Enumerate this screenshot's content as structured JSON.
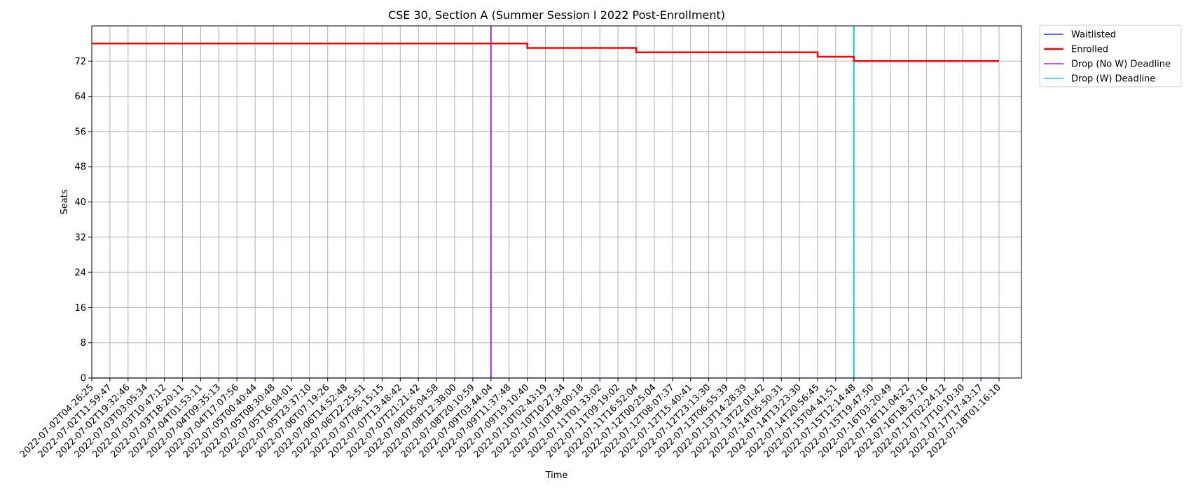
{
  "chart_data": {
    "type": "line",
    "title": "CSE 30, Section A (Summer Session I 2022 Post-Enrollment)",
    "xlabel": "Time",
    "ylabel": "Seats",
    "ylim": [
      0,
      80
    ],
    "yticks": [
      0,
      8,
      16,
      24,
      32,
      40,
      48,
      56,
      64,
      72
    ],
    "grid": true,
    "legend_position": "outside top-right",
    "x_categories": [
      "2022-07-02T04:26:25",
      "2022-07-02T11:59:47",
      "2022-07-02T19:32:46",
      "2022-07-03T03:05:34",
      "2022-07-03T10:47:12",
      "2022-07-03T18:20:11",
      "2022-07-04T01:53:11",
      "2022-07-04T09:35:13",
      "2022-07-04T17:07:56",
      "2022-07-05T00:40:44",
      "2022-07-05T08:30:48",
      "2022-07-05T16:04:01",
      "2022-07-05T23:37:10",
      "2022-07-06T07:19:26",
      "2022-07-06T14:52:48",
      "2022-07-06T22:25:51",
      "2022-07-07T06:15:15",
      "2022-07-07T13:48:42",
      "2022-07-07T21:21:42",
      "2022-07-08T05:04:58",
      "2022-07-08T12:38:00",
      "2022-07-08T20:10:59",
      "2022-07-09T03:44:04",
      "2022-07-09T11:37:48",
      "2022-07-09T19:10:40",
      "2022-07-10T02:43:19",
      "2022-07-10T10:27:34",
      "2022-07-10T18:00:18",
      "2022-07-11T01:33:02",
      "2022-07-11T09:19:02",
      "2022-07-11T16:52:04",
      "2022-07-12T00:25:04",
      "2022-07-12T08:07:37",
      "2022-07-12T15:40:41",
      "2022-07-12T23:13:30",
      "2022-07-13T06:55:39",
      "2022-07-13T14:28:39",
      "2022-07-13T22:01:42",
      "2022-07-14T05:50:31",
      "2022-07-14T13:23:30",
      "2022-07-14T20:56:45",
      "2022-07-15T04:41:51",
      "2022-07-15T12:14:48",
      "2022-07-15T19:47:50",
      "2022-07-16T03:20:49",
      "2022-07-16T11:04:22",
      "2022-07-16T18:37:16",
      "2022-07-17T02:24:12",
      "2022-07-17T10:10:30",
      "2022-07-17T17:43:17",
      "2022-07-18T01:16:10"
    ],
    "series": [
      {
        "name": "Waitlisted",
        "color": "#0000ff",
        "step": true,
        "points": [
          {
            "x": "2022-07-02T04:26:25",
            "y": 0
          },
          {
            "x": "2022-07-18T01:16:10",
            "y": 0
          }
        ]
      },
      {
        "name": "Enrolled",
        "color": "#ff0000",
        "step": true,
        "points": [
          {
            "x": "2022-07-02T04:26:25",
            "y": 76
          },
          {
            "x": "2022-07-09T19:10:40",
            "y": 76
          },
          {
            "x": "2022-07-09T19:10:40",
            "y": 75
          },
          {
            "x": "2022-07-11T16:52:04",
            "y": 75
          },
          {
            "x": "2022-07-11T16:52:04",
            "y": 74
          },
          {
            "x": "2022-07-14T20:56:45",
            "y": 74
          },
          {
            "x": "2022-07-14T20:56:45",
            "y": 73
          },
          {
            "x": "2022-07-15T12:14:48",
            "y": 73
          },
          {
            "x": "2022-07-15T12:14:48",
            "y": 72
          },
          {
            "x": "2022-07-18T01:16:10",
            "y": 72
          }
        ]
      }
    ],
    "vertical_lines": [
      {
        "name": "Drop (No W) Deadline",
        "color": "#9400d3",
        "x": "2022-07-09T03:44:04"
      },
      {
        "name": "Drop (W) Deadline",
        "color": "#00bfd0",
        "x": "2022-07-15T12:14:48"
      }
    ],
    "legend": [
      {
        "label": "Waitlisted",
        "color": "#0000ff"
      },
      {
        "label": "Enrolled",
        "color": "#ff0000"
      },
      {
        "label": "Drop (No W) Deadline",
        "color": "#9400d3"
      },
      {
        "label": "Drop (W) Deadline",
        "color": "#00bfd0"
      }
    ]
  }
}
